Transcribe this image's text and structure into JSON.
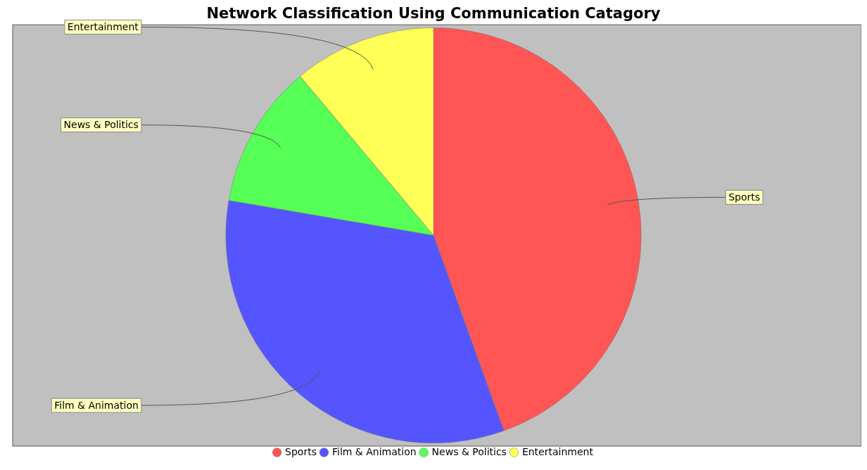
{
  "chart_data": {
    "type": "pie",
    "title": "Network Classification Using Communication Catagory",
    "categories": [
      "Sports",
      "Film & Animation",
      "News & Politics",
      "Entertainment"
    ],
    "values": [
      44.5,
      33.2,
      11.2,
      11.1
    ],
    "colors": [
      "#ff5555",
      "#5555ff",
      "#55ff55",
      "#ffff55"
    ],
    "legend": "bottom"
  }
}
